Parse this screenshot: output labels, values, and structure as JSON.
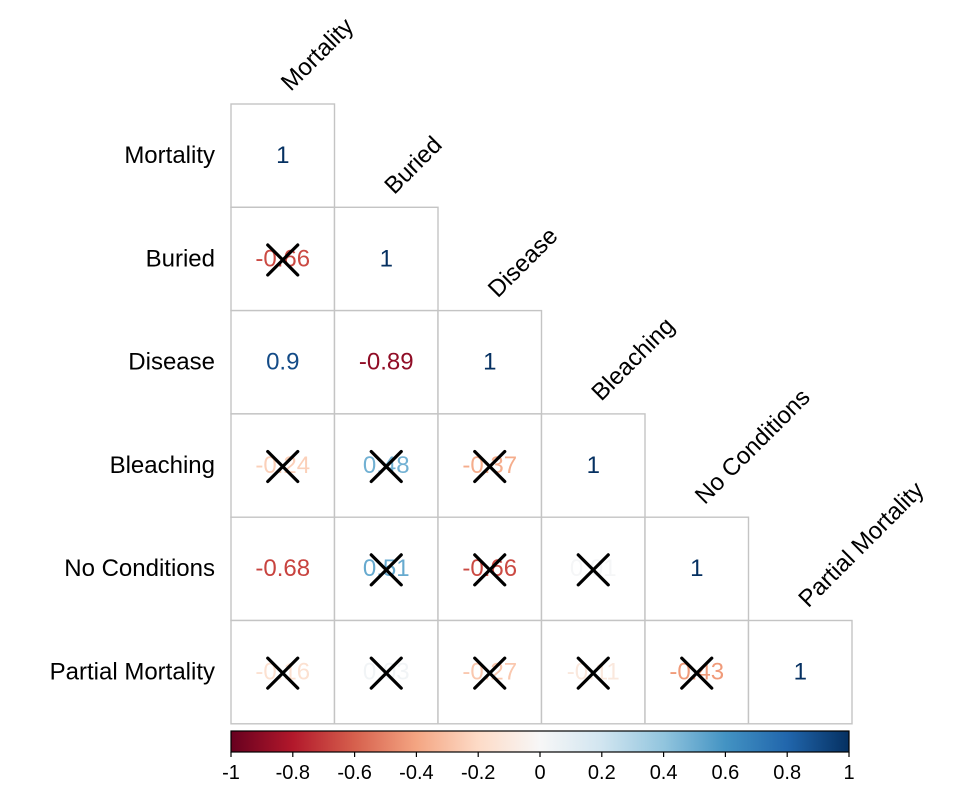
{
  "chart_data": {
    "type": "heatmap",
    "subtype": "correlation-lower-triangle",
    "variables": [
      "Mortality",
      "Buried",
      "Disease",
      "Bleaching",
      "No Conditions",
      "Partial Mortality"
    ],
    "matrix": [
      [
        1,
        null,
        null,
        null,
        null,
        null
      ],
      [
        -0.66,
        1,
        null,
        null,
        null,
        null
      ],
      [
        0.9,
        -0.89,
        1,
        null,
        null,
        null
      ],
      [
        -0.24,
        0.48,
        -0.37,
        1,
        null,
        null
      ],
      [
        -0.68,
        0.51,
        -0.66,
        0.01,
        1,
        null
      ],
      [
        -0.16,
        0.03,
        -0.27,
        -0.11,
        -0.43,
        1
      ]
    ],
    "cell_labels": [
      [
        "1",
        null,
        null,
        null,
        null,
        null
      ],
      [
        "-0.66",
        "1",
        null,
        null,
        null,
        null
      ],
      [
        "0.9",
        "-0.89",
        "1",
        null,
        null,
        null
      ],
      [
        "-0.24",
        "0.48",
        "-0.37",
        "1",
        null,
        null
      ],
      [
        "-0.68",
        "0.51",
        "-0.66",
        "0.01",
        "1",
        null
      ],
      [
        "-0.16",
        "0.03",
        "-0.27",
        "-0.11",
        "-0.43",
        "1"
      ]
    ],
    "not_significant": [
      [
        false,
        null,
        null,
        null,
        null,
        null
      ],
      [
        true,
        false,
        null,
        null,
        null,
        null
      ],
      [
        false,
        false,
        false,
        null,
        null,
        null
      ],
      [
        true,
        true,
        true,
        false,
        null,
        null
      ],
      [
        false,
        true,
        true,
        true,
        false,
        null
      ],
      [
        true,
        true,
        true,
        true,
        true,
        false
      ]
    ],
    "colorbar": {
      "range": [
        -1,
        1
      ],
      "ticks": [
        "-1",
        "-0.8",
        "-0.6",
        "-0.4",
        "-0.2",
        "0",
        "0.2",
        "0.4",
        "0.6",
        "0.8",
        "1"
      ],
      "colors": [
        "#67001f",
        "#b2182b",
        "#d6604d",
        "#f4a582",
        "#fddbc7",
        "#f7f7f7",
        "#d1e5f0",
        "#92c5de",
        "#4393c3",
        "#2166ac",
        "#053061"
      ]
    },
    "insignificant_marker": "X"
  }
}
